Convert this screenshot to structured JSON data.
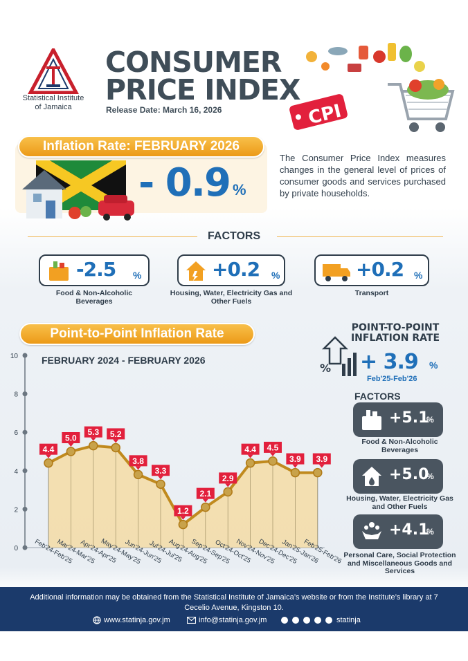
{
  "header": {
    "org_name_line1": "Statistical Institute",
    "org_name_line2": "of Jamaica",
    "title_line1": "CONSUMER",
    "title_line2": "PRICE INDEX",
    "release": "Release Date: March 16, 2026",
    "cpi_tag": "CPI"
  },
  "inflation": {
    "title": "Inflation Rate: FEBRUARY 2026",
    "value": "- 0.9",
    "unit": "%"
  },
  "description": "The Consumer Price Index measures changes in the general level of prices of consumer goods and services purchased by private households.",
  "factors": {
    "title": "FACTORS",
    "items": [
      {
        "value": "-2.5",
        "unit": "%",
        "label": "Food & Non-Alcoholic Beverages",
        "icon": "grocery-bag-icon"
      },
      {
        "value": "+0.2",
        "unit": "%",
        "label": "Housing, Water, Electricity Gas and Other Fuels",
        "icon": "house-utilities-icon"
      },
      {
        "value": "+0.2",
        "unit": "%",
        "label": "Transport",
        "icon": "truck-icon"
      }
    ]
  },
  "ptp_chart": {
    "title": "Point-to-Point Inflation Rate",
    "range": "FEBRUARY 2024 - FEBRUARY 2026"
  },
  "chart_data": {
    "type": "line",
    "categories": [
      "Feb'24-Feb'25",
      "Mar'24-Mar'25",
      "Apr'24-Apr'25",
      "May'24-May'25",
      "Jun'24-Jun'25",
      "Jul'24-Jul'25",
      "Aug'24-Aug'25",
      "Sep'24-Sep'25",
      "Oct'24-Oct'25",
      "Nov'24-Nov'25",
      "Dec'24-Dec'25",
      "Jan'25-Jan'26",
      "Feb'25-Feb'26"
    ],
    "values": [
      4.4,
      5.0,
      5.3,
      5.2,
      3.8,
      3.3,
      1.2,
      2.1,
      2.9,
      4.4,
      4.5,
      3.9,
      3.9
    ],
    "value_labels": [
      "4.4",
      "5.0",
      "5.3",
      "5.2",
      "3.8",
      "3.3",
      "1.2",
      "2.1",
      "2.9",
      "4.4",
      "4.5",
      "3.9",
      "3.9"
    ],
    "ylim": [
      0,
      10
    ],
    "yticks": [
      "0",
      "2",
      "4",
      "6",
      "8",
      "10"
    ],
    "yticks_values": [
      0,
      2,
      4,
      6,
      8,
      10
    ],
    "line_color": "#c08a1e",
    "label_color": "#e2203c",
    "fill_color": "#f9d27a"
  },
  "right_panel": {
    "title_line1": "POINT-TO-POINT",
    "title_line2": "INFLATION RATE",
    "value": "+ 3.9",
    "unit": "%",
    "period": "Feb'25-Feb'26",
    "factors_title": "FACTORS",
    "items": [
      {
        "value": "+5.1",
        "unit": "%",
        "label": "Food & Non-Alcoholic Beverages",
        "icon": "grocery-bag-icon"
      },
      {
        "value": "+5.0",
        "unit": "%",
        "label": "Housing, Water, Electricity Gas and Other Fuels",
        "icon": "house-utilities-icon"
      },
      {
        "value": "+4.1",
        "unit": "%",
        "label": "Personal Care, Social Protection and Miscellaneous Goods and Services",
        "icon": "people-care-icon"
      }
    ]
  },
  "footer": {
    "text": "Additional information may be obtained from the Statistical Institute of Jamaica’s website or from the Institute’s library at 7 Cecelio Avenue, Kingston 10.",
    "website": "www.statinja.gov.jm",
    "email": "info@statinja.gov.jm",
    "social": "statinja"
  },
  "colors": {
    "accent_orange": "#f0a020",
    "accent_blue": "#1f6fb8",
    "dark": "#2f3d4a",
    "footer_bg": "#1b3a6b"
  }
}
